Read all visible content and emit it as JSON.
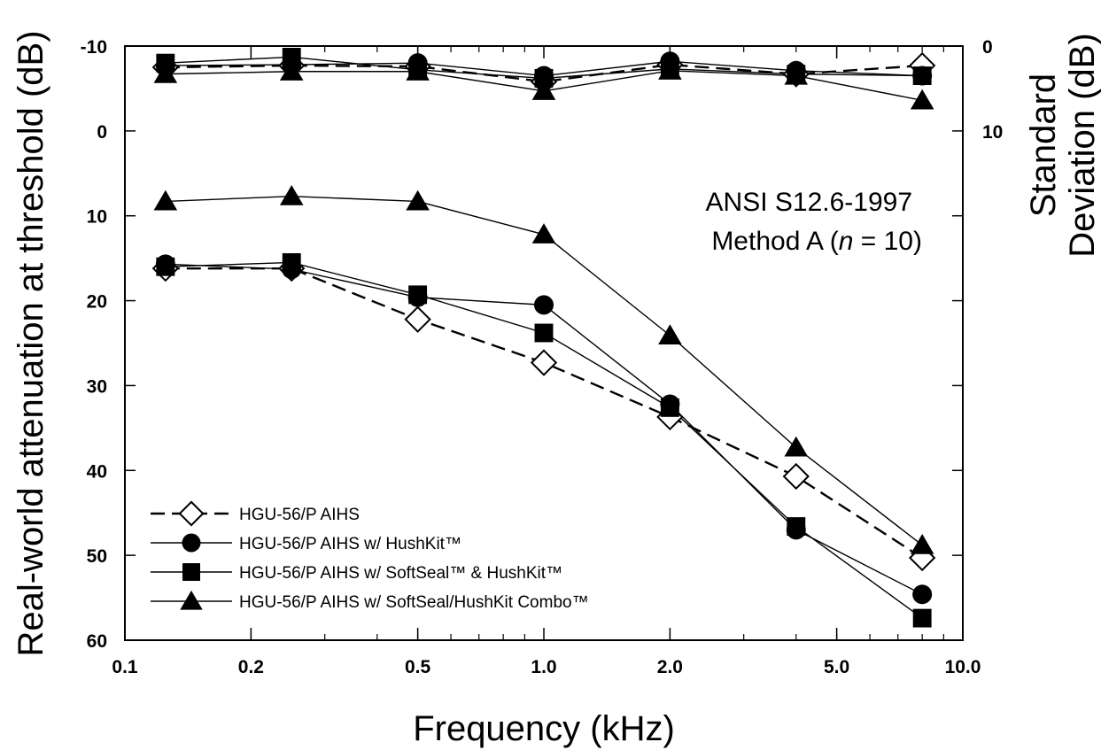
{
  "chart_data": {
    "type": "line",
    "xlabel": "Frequency (kHz)",
    "ylabel": "Real-world attenuation at threshold (dB)",
    "y2label": [
      "Standard",
      "Deviation (dB)"
    ],
    "annotation": [
      "ANSI S12.6-1997",
      "Method A (",
      "n",
      " = 10)"
    ],
    "x_scale": "log",
    "xlim": [
      0.1,
      10.0
    ],
    "ylim": [
      -10,
      60
    ],
    "y_inverted": true,
    "y2lim": [
      0,
      70
    ],
    "grid": false,
    "legend_position": "bottom-left",
    "x_ticks": [
      {
        "value": 0.1,
        "label": "0.1"
      },
      {
        "value": 0.2,
        "label": "0.2"
      },
      {
        "value": 0.5,
        "label": "0.5"
      },
      {
        "value": 1.0,
        "label": "1.0"
      },
      {
        "value": 2.0,
        "label": "2.0"
      },
      {
        "value": 5.0,
        "label": "5.0"
      },
      {
        "value": 10.0,
        "label": "10.0"
      }
    ],
    "y_ticks": [
      {
        "value": -10,
        "label": "-10"
      },
      {
        "value": 0,
        "label": "0"
      },
      {
        "value": 10,
        "label": "10"
      },
      {
        "value": 20,
        "label": "20"
      },
      {
        "value": 30,
        "label": "30"
      },
      {
        "value": 40,
        "label": "40"
      },
      {
        "value": 50,
        "label": "50"
      },
      {
        "value": 60,
        "label": "60"
      }
    ],
    "y2_ticks": [
      {
        "value": 0,
        "label": "0"
      },
      {
        "value": 10,
        "label": "10"
      }
    ],
    "x": [
      0.125,
      0.25,
      0.5,
      1.0,
      2.0,
      4.0,
      8.0
    ],
    "series": [
      {
        "name": "HGU-56/P AIHS",
        "marker": "diamond-open",
        "dash": true,
        "attenuation": [
          16.2,
          16.2,
          22.2,
          27.3,
          33.7,
          40.7,
          50.3
        ],
        "std_dev": [
          2.5,
          2.3,
          2.4,
          4.2,
          2.2,
          3.3,
          2.3
        ]
      },
      {
        "name": "HGU-56/P AIHS w/ HushKit™",
        "marker": "circle",
        "dash": false,
        "attenuation": [
          15.7,
          16.3,
          19.6,
          20.5,
          32.2,
          47.0,
          54.6
        ],
        "std_dev": [
          2.3,
          2.2,
          2.0,
          3.5,
          1.8,
          2.9,
          3.5
        ]
      },
      {
        "name": "HGU-56/P AIHS w/ SoftSeal™ & HushKit™",
        "marker": "square",
        "dash": false,
        "attenuation": [
          16.0,
          15.5,
          19.3,
          23.8,
          32.6,
          46.6,
          57.4
        ],
        "std_dev": [
          2.0,
          1.3,
          2.8,
          3.8,
          2.7,
          3.3,
          3.5
        ]
      },
      {
        "name": "HGU-56/P AIHS w/ SoftSeal/HushKit Combo™",
        "marker": "triangle",
        "dash": false,
        "attenuation": [
          8.3,
          7.7,
          8.3,
          12.2,
          24.1,
          37.3,
          48.8
        ],
        "std_dev": [
          3.3,
          3.0,
          3.0,
          5.3,
          2.9,
          3.5,
          6.4
        ]
      }
    ]
  }
}
